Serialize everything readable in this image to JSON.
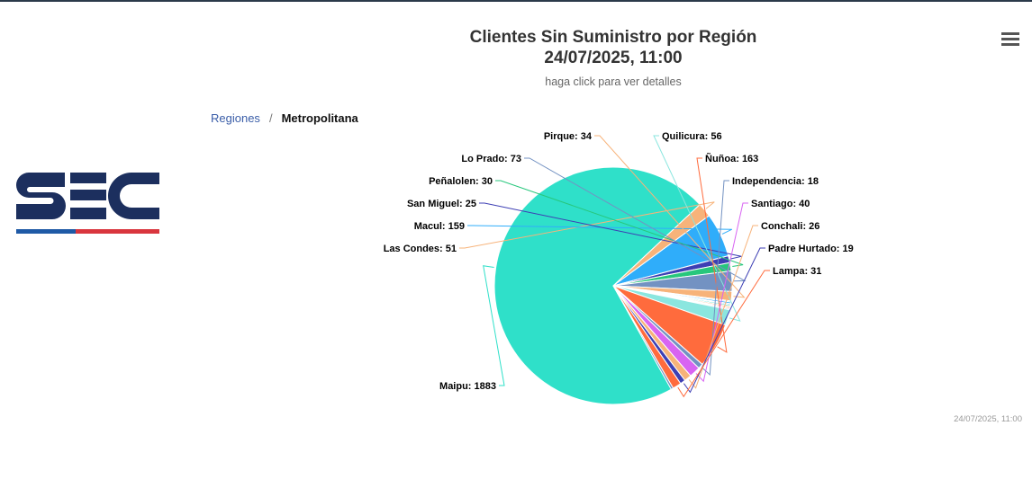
{
  "chart_data": {
    "type": "pie",
    "title_line1": "Clientes Sin Suministro por Región",
    "title_line2": "24/07/2025, 11:00",
    "subtitle": "haga click para ver detalles",
    "credits": "24/07/2025, 11:00",
    "slices": [
      {
        "name": "Maipu",
        "value": 1883,
        "color": "#2fe0c9",
        "label": "Maipu: 1883"
      },
      {
        "name": "Las Condes",
        "value": 51,
        "color": "#f7b37a",
        "label": "Las Condes: 51"
      },
      {
        "name": "Macul",
        "value": 159,
        "color": "#2fadfa",
        "label": "Macul: 159"
      },
      {
        "name": "San Miguel",
        "value": 25,
        "color": "#3d3fb4",
        "label": "San Miguel: 25"
      },
      {
        "name": "Peñalolen",
        "value": 30,
        "color": "#27c77c",
        "label": "Peñalolen: 30"
      },
      {
        "name": "Lo Prado",
        "value": 73,
        "color": "#7392c2",
        "label": "Lo Prado: 73"
      },
      {
        "name": "Pirque",
        "value": 34,
        "color": "#f7b37a",
        "label": "Pirque: 34"
      },
      {
        "name": "",
        "value": 4,
        "color": "#7bd3c8",
        "label": ""
      },
      {
        "name": "",
        "value": 6,
        "color": "#2fadfa",
        "label": ""
      },
      {
        "name": "",
        "value": 4,
        "color": "#7392c2",
        "label": ""
      },
      {
        "name": "",
        "value": 5,
        "color": "#2fe0c9",
        "label": ""
      },
      {
        "name": "",
        "value": 5,
        "color": "#f7b37a",
        "label": ""
      },
      {
        "name": "",
        "value": 4,
        "color": "#ff6b3d",
        "label": ""
      },
      {
        "name": "",
        "value": 4,
        "color": "#7392c2",
        "label": ""
      },
      {
        "name": "Quilicura",
        "value": 56,
        "color": "#8be6df",
        "label": "Quilicura: 56"
      },
      {
        "name": "Ñuñoa",
        "value": 163,
        "color": "#ff6b3d",
        "label": "Ñuñoa: 163"
      },
      {
        "name": "Independencia",
        "value": 18,
        "color": "#7392c2",
        "label": "Independencia: 18"
      },
      {
        "name": "Santiago",
        "value": 40,
        "color": "#d864f2",
        "label": "Santiago: 40"
      },
      {
        "name": "Conchali",
        "value": 26,
        "color": "#f7b37a",
        "label": "Conchali: 26"
      },
      {
        "name": "Padre Hurtado",
        "value": 19,
        "color": "#3d3fb4",
        "label": "Padre Hurtado: 19"
      },
      {
        "name": "Lampa",
        "value": 31,
        "color": "#ff6b3d",
        "label": "Lampa: 31"
      },
      {
        "name": "",
        "value": 8,
        "color": "#7392c2",
        "label": ""
      }
    ]
  },
  "breadcrumb": {
    "root": "Regiones",
    "separator": "/",
    "current": "Metropolitana"
  },
  "logo": {
    "text": "SEC",
    "colors": {
      "navy": "#1c2f5e",
      "blue": "#1f5aa6",
      "red": "#d9363e"
    }
  },
  "menu": {
    "icon": "hamburger-icon"
  }
}
